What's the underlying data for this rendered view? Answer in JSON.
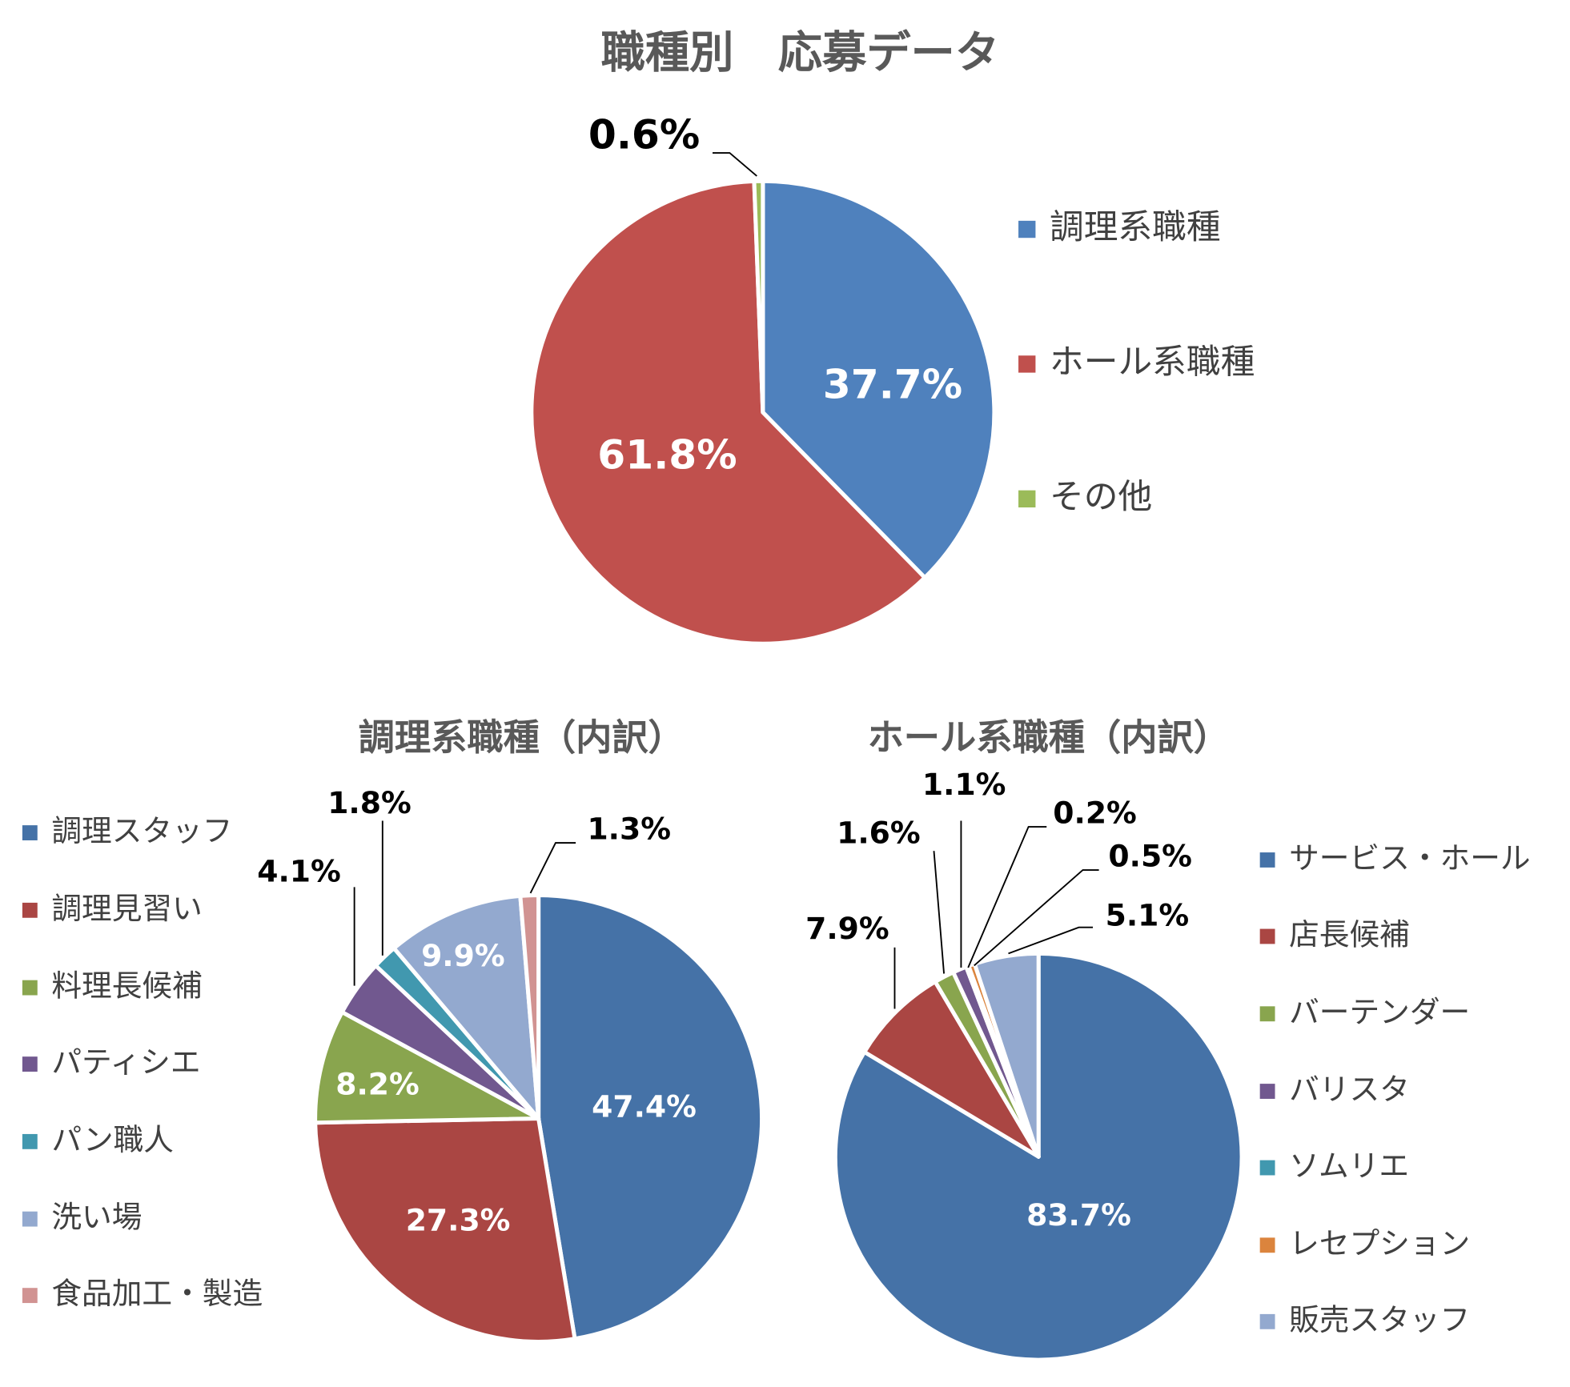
{
  "chart_data": [
    {
      "type": "pie",
      "title": "職種別　応募データ",
      "categories": [
        "調理系職種",
        "ホール系職種",
        "その他"
      ],
      "values": [
        37.7,
        61.8,
        0.6
      ],
      "value_labels": [
        "37.7%",
        "61.8%",
        "0.6%"
      ],
      "colors": [
        "#4f81bd",
        "#c0504d",
        "#9bbb59"
      ]
    },
    {
      "type": "pie",
      "title": "調理系職種（内訳）",
      "categories": [
        "調理スタッフ",
        "調理見習い",
        "料理長候補",
        "パティシエ",
        "パン職人",
        "洗い場",
        "食品加工・製造"
      ],
      "values": [
        47.4,
        27.3,
        8.2,
        4.1,
        1.8,
        9.9,
        1.3
      ],
      "value_labels": [
        "47.4%",
        "27.3%",
        "8.2%",
        "4.1%",
        "1.8%",
        "9.9%",
        "1.3%"
      ],
      "colors": [
        "#4572a7",
        "#aa4643",
        "#89a54e",
        "#71588f",
        "#4198af",
        "#93a9cf",
        "#d19392"
      ]
    },
    {
      "type": "pie",
      "title": "ホール系職種（内訳）",
      "categories": [
        "サービス・ホール",
        "店長候補",
        "バーテンダー",
        "バリスタ",
        "ソムリエ",
        "レセプション",
        "販売スタッフ"
      ],
      "values": [
        83.7,
        7.9,
        1.6,
        1.1,
        0.2,
        0.5,
        5.1
      ],
      "value_labels": [
        "83.7%",
        "7.9%",
        "1.6%",
        "1.1%",
        "0.2%",
        "0.5%",
        "5.1%"
      ],
      "colors": [
        "#4572a7",
        "#aa4643",
        "#89a54e",
        "#71588f",
        "#4198af",
        "#db843d",
        "#93a9cf"
      ]
    }
  ]
}
